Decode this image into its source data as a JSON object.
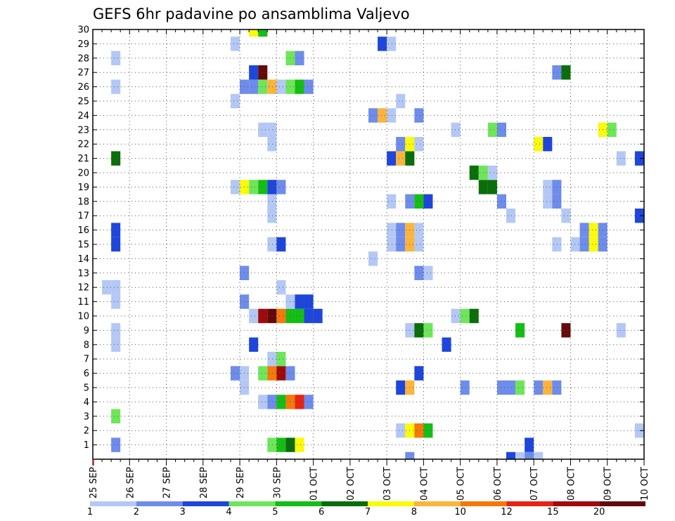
{
  "chart_data": {
    "type": "heatmap",
    "title": "GEFS 6hr padavine po ansamblima Valjevo",
    "xlabel": "",
    "ylabel": "",
    "x_tick_labels": [
      "25 SEP",
      "26 SEP",
      "27 SEP",
      "28 SEP",
      "29 SEP",
      "30 SEP",
      "01 OCT",
      "02 OCT",
      "03 OCT",
      "04 OCT",
      "05 OCT",
      "06 OCT",
      "07 OCT",
      "08 OCT",
      "09 OCT",
      "10 OCT"
    ],
    "x_unit": "6-hour step (4 per day)",
    "xlim_steps": [
      0,
      60
    ],
    "y_tick_labels": [
      "1",
      "2",
      "3",
      "4",
      "5",
      "6",
      "7",
      "8",
      "9",
      "10",
      "11",
      "12",
      "13",
      "14",
      "15",
      "16",
      "17",
      "18",
      "19",
      "20",
      "21",
      "22",
      "23",
      "24",
      "25",
      "26",
      "27",
      "28",
      "29",
      "30"
    ],
    "ylim": [
      0,
      30
    ],
    "grid": true,
    "legend": {
      "placement": "bottom",
      "levels": [
        "1",
        "2",
        "3",
        "4",
        "5",
        "6",
        "7",
        "8",
        "10",
        "12",
        "15",
        "20"
      ],
      "colors": [
        "#b4c8f5",
        "#6e8ceb",
        "#1e46dc",
        "#6ee65a",
        "#14be14",
        "#0a6e0a",
        "#fafa0a",
        "#fab43c",
        "#f5780a",
        "#e62314",
        "#a00a0a",
        "#640a0a"
      ]
    },
    "cells": [
      {
        "member": 1,
        "step": 2.5,
        "cls": 1
      },
      {
        "member": 1,
        "step": 19.5,
        "cls": 3
      },
      {
        "member": 1,
        "step": 20.5,
        "cls": 4
      },
      {
        "member": 1,
        "step": 21.5,
        "cls": 5
      },
      {
        "member": 1,
        "step": 22.5,
        "cls": 6
      },
      {
        "member": 1,
        "step": 47.5,
        "cls": 2
      },
      {
        "member": 2,
        "step": 33.5,
        "cls": 0
      },
      {
        "member": 2,
        "step": 34.5,
        "cls": 6
      },
      {
        "member": 2,
        "step": 35.5,
        "cls": 8
      },
      {
        "member": 2,
        "step": 36.5,
        "cls": 4
      },
      {
        "member": 2,
        "step": 59.5,
        "cls": 0
      },
      {
        "member": 3,
        "step": 2.5,
        "cls": 3
      },
      {
        "member": 4,
        "step": 18.5,
        "cls": 0
      },
      {
        "member": 4,
        "step": 19.5,
        "cls": 1
      },
      {
        "member": 4,
        "step": 20.5,
        "cls": 4
      },
      {
        "member": 4,
        "step": 21.5,
        "cls": 8
      },
      {
        "member": 4,
        "step": 22.5,
        "cls": 9
      },
      {
        "member": 4,
        "step": 23.5,
        "cls": 1
      },
      {
        "member": 5,
        "step": 16.5,
        "cls": 0
      },
      {
        "member": 5,
        "step": 33.5,
        "cls": 2
      },
      {
        "member": 5,
        "step": 34.5,
        "cls": 7
      },
      {
        "member": 5,
        "step": 40.5,
        "cls": 1
      },
      {
        "member": 5,
        "step": 44.5,
        "cls": 1
      },
      {
        "member": 5,
        "step": 45.5,
        "cls": 1
      },
      {
        "member": 5,
        "step": 46.5,
        "cls": 3
      },
      {
        "member": 5,
        "step": 48.5,
        "cls": 1
      },
      {
        "member": 5,
        "step": 49.5,
        "cls": 7
      },
      {
        "member": 5,
        "step": 50.5,
        "cls": 1
      },
      {
        "member": 6,
        "step": 15.5,
        "cls": 1
      },
      {
        "member": 6,
        "step": 16.5,
        "cls": 0
      },
      {
        "member": 6,
        "step": 18.5,
        "cls": 3
      },
      {
        "member": 6,
        "step": 19.5,
        "cls": 8
      },
      {
        "member": 6,
        "step": 20.5,
        "cls": 10
      },
      {
        "member": 6,
        "step": 21.5,
        "cls": 1
      },
      {
        "member": 6,
        "step": 35.5,
        "cls": 2
      },
      {
        "member": 7,
        "step": 19.5,
        "cls": 0
      },
      {
        "member": 7,
        "step": 20.5,
        "cls": 3
      },
      {
        "member": 8,
        "step": 2.5,
        "cls": 0
      },
      {
        "member": 8,
        "step": 17.5,
        "cls": 2
      },
      {
        "member": 8,
        "step": 38.5,
        "cls": 2
      },
      {
        "member": 9,
        "step": 2.5,
        "cls": 0
      },
      {
        "member": 9,
        "step": 34.5,
        "cls": 0
      },
      {
        "member": 9,
        "step": 35.5,
        "cls": 5
      },
      {
        "member": 9,
        "step": 36.5,
        "cls": 3
      },
      {
        "member": 9,
        "step": 46.5,
        "cls": 4
      },
      {
        "member": 9,
        "step": 51.5,
        "cls": 11
      },
      {
        "member": 9,
        "step": 57.5,
        "cls": 0
      },
      {
        "member": 10,
        "step": 17.5,
        "cls": 0
      },
      {
        "member": 10,
        "step": 18.5,
        "cls": 10
      },
      {
        "member": 10,
        "step": 19.5,
        "cls": 11
      },
      {
        "member": 10,
        "step": 20.5,
        "cls": 8
      },
      {
        "member": 10,
        "step": 21.5,
        "cls": 4
      },
      {
        "member": 10,
        "step": 22.5,
        "cls": 4
      },
      {
        "member": 10,
        "step": 23.5,
        "cls": 2
      },
      {
        "member": 10,
        "step": 24.5,
        "cls": 2
      },
      {
        "member": 10,
        "step": 39.5,
        "cls": 0
      },
      {
        "member": 10,
        "step": 40.5,
        "cls": 3
      },
      {
        "member": 10,
        "step": 41.5,
        "cls": 5
      },
      {
        "member": 11,
        "step": 2.5,
        "cls": 0
      },
      {
        "member": 11,
        "step": 16.5,
        "cls": 1
      },
      {
        "member": 11,
        "step": 21.5,
        "cls": 0
      },
      {
        "member": 11,
        "step": 22.5,
        "cls": 2
      },
      {
        "member": 11,
        "step": 23.5,
        "cls": 2
      },
      {
        "member": 12,
        "step": 1.5,
        "cls": 0
      },
      {
        "member": 12,
        "step": 2.5,
        "cls": 0
      },
      {
        "member": 12,
        "step": 20.5,
        "cls": 0
      },
      {
        "member": 13,
        "step": 16.5,
        "cls": 1
      },
      {
        "member": 13,
        "step": 35.5,
        "cls": 1
      },
      {
        "member": 13,
        "step": 36.5,
        "cls": 0
      },
      {
        "member": 14,
        "step": 30.5,
        "cls": 0
      },
      {
        "member": 15,
        "step": 2.5,
        "cls": 2
      },
      {
        "member": 15,
        "step": 19.5,
        "cls": 0
      },
      {
        "member": 15,
        "step": 20.5,
        "cls": 2
      },
      {
        "member": 15,
        "step": 32.5,
        "cls": 0
      },
      {
        "member": 15,
        "step": 33.5,
        "cls": 1
      },
      {
        "member": 15,
        "step": 34.5,
        "cls": 7
      },
      {
        "member": 15,
        "step": 35.5,
        "cls": 0
      },
      {
        "member": 15,
        "step": 50.5,
        "cls": 0
      },
      {
        "member": 15,
        "step": 52.5,
        "cls": 0
      },
      {
        "member": 15,
        "step": 53.5,
        "cls": 1
      },
      {
        "member": 15,
        "step": 54.5,
        "cls": 6
      },
      {
        "member": 15,
        "step": 55.5,
        "cls": 1
      },
      {
        "member": 16,
        "step": 2.5,
        "cls": 2
      },
      {
        "member": 16,
        "step": 32.5,
        "cls": 0
      },
      {
        "member": 16,
        "step": 33.5,
        "cls": 1
      },
      {
        "member": 16,
        "step": 34.5,
        "cls": 7
      },
      {
        "member": 16,
        "step": 35.5,
        "cls": 0
      },
      {
        "member": 16,
        "step": 53.5,
        "cls": 1
      },
      {
        "member": 16,
        "step": 54.5,
        "cls": 6
      },
      {
        "member": 16,
        "step": 55.5,
        "cls": 1
      },
      {
        "member": 17,
        "step": 19.5,
        "cls": 0
      },
      {
        "member": 17,
        "step": 45.5,
        "cls": 0
      },
      {
        "member": 17,
        "step": 51.5,
        "cls": 0
      },
      {
        "member": 17,
        "step": 59.5,
        "cls": 2
      },
      {
        "member": 18,
        "step": 19.5,
        "cls": 0
      },
      {
        "member": 18,
        "step": 32.5,
        "cls": 0
      },
      {
        "member": 18,
        "step": 34.5,
        "cls": 1
      },
      {
        "member": 18,
        "step": 35.5,
        "cls": 4
      },
      {
        "member": 18,
        "step": 36.5,
        "cls": 2
      },
      {
        "member": 18,
        "step": 44.5,
        "cls": 1
      },
      {
        "member": 18,
        "step": 49.5,
        "cls": 0
      },
      {
        "member": 18,
        "step": 50.5,
        "cls": 1
      },
      {
        "member": 19,
        "step": 15.5,
        "cls": 0
      },
      {
        "member": 19,
        "step": 16.5,
        "cls": 6
      },
      {
        "member": 19,
        "step": 17.5,
        "cls": 3
      },
      {
        "member": 19,
        "step": 18.5,
        "cls": 4
      },
      {
        "member": 19,
        "step": 19.5,
        "cls": 2
      },
      {
        "member": 19,
        "step": 20.5,
        "cls": 1
      },
      {
        "member": 19,
        "step": 42.5,
        "cls": 5
      },
      {
        "member": 19,
        "step": 43.5,
        "cls": 5
      },
      {
        "member": 19,
        "step": 49.5,
        "cls": 0
      },
      {
        "member": 19,
        "step": 50.5,
        "cls": 1
      },
      {
        "member": 20,
        "step": 41.5,
        "cls": 5
      },
      {
        "member": 20,
        "step": 42.5,
        "cls": 3
      },
      {
        "member": 20,
        "step": 43.5,
        "cls": 0
      },
      {
        "member": 21,
        "step": 2.5,
        "cls": 5
      },
      {
        "member": 21,
        "step": 32.5,
        "cls": 2
      },
      {
        "member": 21,
        "step": 33.5,
        "cls": 7
      },
      {
        "member": 21,
        "step": 34.5,
        "cls": 5
      },
      {
        "member": 21,
        "step": 57.5,
        "cls": 0
      },
      {
        "member": 21,
        "step": 59.5,
        "cls": 2
      },
      {
        "member": 22,
        "step": 19.5,
        "cls": 0
      },
      {
        "member": 22,
        "step": 33.5,
        "cls": 1
      },
      {
        "member": 22,
        "step": 34.5,
        "cls": 6
      },
      {
        "member": 22,
        "step": 35.5,
        "cls": 0
      },
      {
        "member": 22,
        "step": 48.5,
        "cls": 6
      },
      {
        "member": 22,
        "step": 49.5,
        "cls": 2
      },
      {
        "member": 23,
        "step": 18.5,
        "cls": 0
      },
      {
        "member": 23,
        "step": 19.5,
        "cls": 0
      },
      {
        "member": 23,
        "step": 39.5,
        "cls": 0
      },
      {
        "member": 23,
        "step": 43.5,
        "cls": 3
      },
      {
        "member": 23,
        "step": 44.5,
        "cls": 1
      },
      {
        "member": 23,
        "step": 55.5,
        "cls": 6
      },
      {
        "member": 23,
        "step": 56.5,
        "cls": 3
      },
      {
        "member": 24,
        "step": 30.5,
        "cls": 1
      },
      {
        "member": 24,
        "step": 31.5,
        "cls": 7
      },
      {
        "member": 24,
        "step": 32.5,
        "cls": 0
      },
      {
        "member": 24,
        "step": 35.5,
        "cls": 1
      },
      {
        "member": 25,
        "step": 15.5,
        "cls": 0
      },
      {
        "member": 25,
        "step": 33.5,
        "cls": 0
      },
      {
        "member": 26,
        "step": 2.5,
        "cls": 0
      },
      {
        "member": 26,
        "step": 16.5,
        "cls": 1
      },
      {
        "member": 26,
        "step": 17.5,
        "cls": 1
      },
      {
        "member": 26,
        "step": 18.5,
        "cls": 3
      },
      {
        "member": 26,
        "step": 19.5,
        "cls": 7
      },
      {
        "member": 26,
        "step": 20.5,
        "cls": 0
      },
      {
        "member": 26,
        "step": 21.5,
        "cls": 3
      },
      {
        "member": 26,
        "step": 22.5,
        "cls": 4
      },
      {
        "member": 26,
        "step": 23.5,
        "cls": 1
      },
      {
        "member": 27,
        "step": 17.5,
        "cls": 2
      },
      {
        "member": 27,
        "step": 18.5,
        "cls": 11
      },
      {
        "member": 27,
        "step": 50.5,
        "cls": 1
      },
      {
        "member": 27,
        "step": 51.5,
        "cls": 5
      },
      {
        "member": 28,
        "step": 2.5,
        "cls": 0
      },
      {
        "member": 28,
        "step": 21.5,
        "cls": 3
      },
      {
        "member": 28,
        "step": 22.5,
        "cls": 1
      },
      {
        "member": 29,
        "step": 15.5,
        "cls": 0
      },
      {
        "member": 29,
        "step": 31.5,
        "cls": 2
      },
      {
        "member": 29,
        "step": 32.5,
        "cls": 0
      },
      {
        "member": 30,
        "step": 17.5,
        "cls": 6
      },
      {
        "member": 30,
        "step": 18.5,
        "cls": 4
      },
      {
        "member": 0,
        "step": 34.5,
        "cls": 1
      },
      {
        "member": 0,
        "step": 45.5,
        "cls": 2
      },
      {
        "member": 0,
        "step": 46.5,
        "cls": 0
      },
      {
        "member": 0,
        "step": 47.5,
        "cls": 1
      },
      {
        "member": 0,
        "step": 48.5,
        "cls": 0
      }
    ]
  }
}
